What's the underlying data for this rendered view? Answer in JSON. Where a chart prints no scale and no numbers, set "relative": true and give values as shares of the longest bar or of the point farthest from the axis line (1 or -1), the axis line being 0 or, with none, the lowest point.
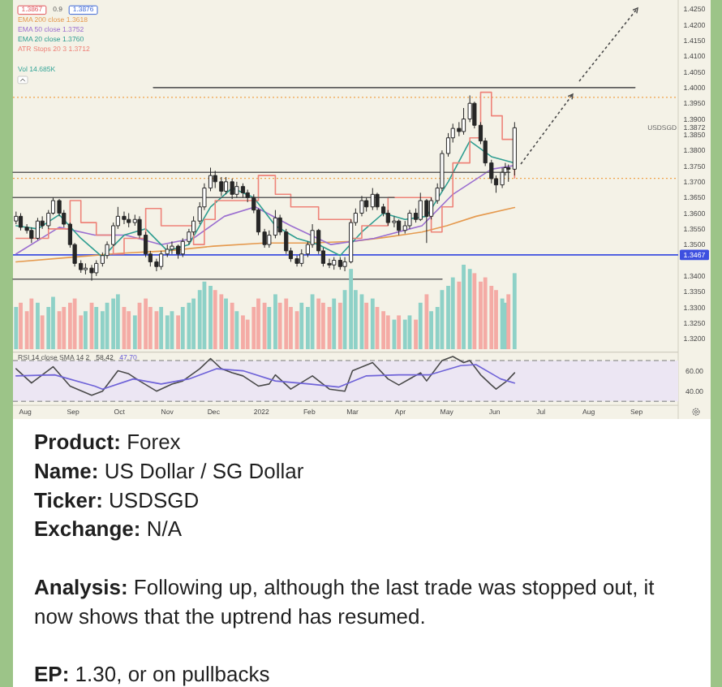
{
  "chart_data": [
    {
      "type": "candlestick",
      "color": "#262626",
      "xlim": [
        "2021-07-24",
        "2022-09-28"
      ],
      "ylim": [
        1.3159,
        1.4279
      ],
      "tick_labels": "y",
      "legend": "top left",
      "yticks": [
        {
          "value": 1.32,
          "label": "1.3200"
        },
        {
          "value": 1.325,
          "label": "1.3250"
        },
        {
          "value": 1.33,
          "label": "1.3300"
        },
        {
          "value": 1.335,
          "label": "1.3350"
        },
        {
          "value": 1.34,
          "label": "1.3400"
        },
        {
          "value": 1.35,
          "label": "1.3500"
        },
        {
          "value": 1.355,
          "label": "1.3550"
        },
        {
          "value": 1.36,
          "label": "1.3600"
        },
        {
          "value": 1.365,
          "label": "1.3650"
        },
        {
          "value": 1.37,
          "label": "1.3700"
        },
        {
          "value": 1.375,
          "label": "1.3750"
        },
        {
          "value": 1.38,
          "label": "1.3800"
        },
        {
          "value": 1.385,
          "label": "1.3850"
        },
        {
          "value": 1.3872,
          "label": "1.3872"
        },
        {
          "value": 1.39,
          "label": "1.3900"
        },
        {
          "value": 1.395,
          "label": "1.3950"
        },
        {
          "value": 1.4,
          "label": "1.4000"
        },
        {
          "value": 1.405,
          "label": "1.4050"
        },
        {
          "value": 1.41,
          "label": "1.4100"
        },
        {
          "value": 1.415,
          "label": "1.4150"
        },
        {
          "value": 1.42,
          "label": "1.4200"
        },
        {
          "value": 1.425,
          "label": "1.4250"
        }
      ],
      "annotations": [
        "1.3867",
        "0.9",
        "1.3876",
        "USDSGD"
      ],
      "ref_lines": [
        {
          "axis": "y",
          "value": 1.3467,
          "label": "1.3467",
          "color": "#3d4fe0"
        },
        {
          "axis": "y",
          "value": 1.3969,
          "color": "#f0a24a",
          "line_style": "dotted"
        },
        {
          "axis": "y",
          "value": 1.3711,
          "color": "#f0a24a",
          "line_style": "dotted"
        }
      ],
      "x": [
        "2021-07-26",
        "2021-07-29",
        "2021-08-02",
        "2021-08-05",
        "2021-08-09",
        "2021-08-12",
        "2021-08-16",
        "2021-08-19",
        "2021-08-23",
        "2021-08-26",
        "2021-08-30",
        "2021-09-02",
        "2021-09-06",
        "2021-09-09",
        "2021-09-13",
        "2021-09-16",
        "2021-09-20",
        "2021-09-23",
        "2021-09-27",
        "2021-09-30",
        "2021-10-04",
        "2021-10-07",
        "2021-10-11",
        "2021-10-14",
        "2021-10-18",
        "2021-10-21",
        "2021-10-25",
        "2021-10-28",
        "2021-11-01",
        "2021-11-04",
        "2021-11-08",
        "2021-11-11",
        "2021-11-15",
        "2021-11-18",
        "2021-11-22",
        "2021-11-25",
        "2021-11-29",
        "2021-12-02",
        "2021-12-06",
        "2021-12-09",
        "2021-12-13",
        "2021-12-16",
        "2021-12-20",
        "2021-12-23",
        "2021-12-27",
        "2021-12-30",
        "2022-01-03",
        "2022-01-06",
        "2022-01-10",
        "2022-01-13",
        "2022-01-17",
        "2022-01-20",
        "2022-01-24",
        "2022-01-27",
        "2022-01-31",
        "2022-02-03",
        "2022-02-07",
        "2022-02-10",
        "2022-02-14",
        "2022-02-17",
        "2022-02-21",
        "2022-02-24",
        "2022-02-28",
        "2022-03-03",
        "2022-03-07",
        "2022-03-10",
        "2022-03-14",
        "2022-03-17",
        "2022-03-21",
        "2022-03-24",
        "2022-03-28",
        "2022-03-31",
        "2022-04-04",
        "2022-04-07",
        "2022-04-11",
        "2022-04-14",
        "2022-04-18",
        "2022-04-21",
        "2022-04-25",
        "2022-04-28",
        "2022-05-02",
        "2022-05-05",
        "2022-05-09",
        "2022-05-12",
        "2022-05-16",
        "2022-05-19",
        "2022-05-23",
        "2022-05-26",
        "2022-05-30",
        "2022-06-02",
        "2022-06-06",
        "2022-06-08",
        "2022-06-10",
        "2022-06-14"
      ],
      "ohlc": [
        [
          1.3575,
          1.3605,
          1.3565,
          1.359
        ],
        [
          1.359,
          1.36,
          1.3545,
          1.3555
        ],
        [
          1.3555,
          1.3565,
          1.3535,
          1.3545
        ],
        [
          1.3545,
          1.3555,
          1.3505,
          1.352
        ],
        [
          1.352,
          1.3585,
          1.3515,
          1.3575
        ],
        [
          1.3575,
          1.359,
          1.355,
          1.356
        ],
        [
          1.356,
          1.361,
          1.355,
          1.36
        ],
        [
          1.36,
          1.365,
          1.3595,
          1.364
        ],
        [
          1.364,
          1.3645,
          1.359,
          1.36
        ],
        [
          1.36,
          1.361,
          1.3555,
          1.3565
        ],
        [
          1.3565,
          1.357,
          1.349,
          1.35
        ],
        [
          1.35,
          1.3505,
          1.343,
          1.344
        ],
        [
          1.344,
          1.345,
          1.341,
          1.342
        ],
        [
          1.342,
          1.344,
          1.3405,
          1.3425
        ],
        [
          1.3425,
          1.3435,
          1.3385,
          1.341
        ],
        [
          1.341,
          1.345,
          1.34,
          1.344
        ],
        [
          1.344,
          1.3475,
          1.343,
          1.3465
        ],
        [
          1.3465,
          1.351,
          1.3455,
          1.35
        ],
        [
          1.35,
          1.357,
          1.3495,
          1.356
        ],
        [
          1.356,
          1.362,
          1.355,
          1.359
        ],
        [
          1.359,
          1.3605,
          1.3565,
          1.358
        ],
        [
          1.358,
          1.36,
          1.3555,
          1.357
        ],
        [
          1.357,
          1.3595,
          1.356,
          1.358
        ],
        [
          1.358,
          1.359,
          1.352,
          1.353
        ],
        [
          1.353,
          1.354,
          1.346,
          1.347
        ],
        [
          1.347,
          1.348,
          1.343,
          1.3445
        ],
        [
          1.3445,
          1.3455,
          1.3415,
          1.343
        ],
        [
          1.343,
          1.348,
          1.342,
          1.347
        ],
        [
          1.347,
          1.35,
          1.346,
          1.3485
        ],
        [
          1.3485,
          1.351,
          1.347,
          1.3495
        ],
        [
          1.3495,
          1.35,
          1.3455,
          1.347
        ],
        [
          1.347,
          1.352,
          1.346,
          1.351
        ],
        [
          1.351,
          1.355,
          1.35,
          1.354
        ],
        [
          1.354,
          1.359,
          1.353,
          1.3575
        ],
        [
          1.3575,
          1.3635,
          1.3565,
          1.362
        ],
        [
          1.362,
          1.3695,
          1.361,
          1.368
        ],
        [
          1.368,
          1.3745,
          1.367,
          1.372
        ],
        [
          1.372,
          1.3735,
          1.368,
          1.37
        ],
        [
          1.37,
          1.3715,
          1.3655,
          1.367
        ],
        [
          1.367,
          1.3715,
          1.366,
          1.37
        ],
        [
          1.37,
          1.371,
          1.3645,
          1.366
        ],
        [
          1.366,
          1.37,
          1.365,
          1.3685
        ],
        [
          1.3685,
          1.3695,
          1.365,
          1.3665
        ],
        [
          1.3665,
          1.3675,
          1.3635,
          1.365
        ],
        [
          1.365,
          1.366,
          1.36,
          1.361
        ],
        [
          1.361,
          1.3615,
          1.353,
          1.354
        ],
        [
          1.354,
          1.355,
          1.349,
          1.35
        ],
        [
          1.35,
          1.3545,
          1.349,
          1.353
        ],
        [
          1.353,
          1.361,
          1.352,
          1.3585
        ],
        [
          1.3585,
          1.3595,
          1.353,
          1.354
        ],
        [
          1.354,
          1.355,
          1.347,
          1.348
        ],
        [
          1.348,
          1.349,
          1.3445,
          1.3455
        ],
        [
          1.3455,
          1.3465,
          1.343,
          1.344
        ],
        [
          1.344,
          1.3485,
          1.343,
          1.347
        ],
        [
          1.347,
          1.351,
          1.346,
          1.35
        ],
        [
          1.35,
          1.3565,
          1.349,
          1.3545
        ],
        [
          1.3545,
          1.355,
          1.347,
          1.348
        ],
        [
          1.348,
          1.349,
          1.343,
          1.344
        ],
        [
          1.344,
          1.3455,
          1.3425,
          1.3435
        ],
        [
          1.3435,
          1.346,
          1.342,
          1.345
        ],
        [
          1.345,
          1.346,
          1.342,
          1.343
        ],
        [
          1.343,
          1.346,
          1.3415,
          1.3445
        ],
        [
          1.3445,
          1.358,
          1.344,
          1.357
        ],
        [
          1.357,
          1.3615,
          1.356,
          1.36
        ],
        [
          1.36,
          1.3655,
          1.359,
          1.364
        ],
        [
          1.364,
          1.365,
          1.3605,
          1.362
        ],
        [
          1.362,
          1.368,
          1.361,
          1.366
        ],
        [
          1.366,
          1.3665,
          1.361,
          1.362
        ],
        [
          1.362,
          1.363,
          1.359,
          1.36
        ],
        [
          1.36,
          1.361,
          1.356,
          1.357
        ],
        [
          1.357,
          1.359,
          1.3555,
          1.3575
        ],
        [
          1.3575,
          1.358,
          1.353,
          1.3545
        ],
        [
          1.3545,
          1.3575,
          1.3535,
          1.356
        ],
        [
          1.356,
          1.361,
          1.355,
          1.36
        ],
        [
          1.36,
          1.3615,
          1.357,
          1.358
        ],
        [
          1.358,
          1.3665,
          1.3575,
          1.364
        ],
        [
          1.364,
          1.3645,
          1.3505,
          1.359
        ],
        [
          1.359,
          1.365,
          1.358,
          1.364
        ],
        [
          1.364,
          1.3695,
          1.363,
          1.368
        ],
        [
          1.368,
          1.38,
          1.367,
          1.379
        ],
        [
          1.379,
          1.3855,
          1.378,
          1.384
        ],
        [
          1.384,
          1.3885,
          1.3825,
          1.387
        ],
        [
          1.387,
          1.389,
          1.3845,
          1.386
        ],
        [
          1.386,
          1.3935,
          1.385,
          1.39
        ],
        [
          1.39,
          1.3975,
          1.389,
          1.395
        ],
        [
          1.395,
          1.3955,
          1.387,
          1.388
        ],
        [
          1.388,
          1.389,
          1.382,
          1.383
        ],
        [
          1.383,
          1.384,
          1.375,
          1.376
        ],
        [
          1.376,
          1.377,
          1.3695,
          1.371
        ],
        [
          1.371,
          1.372,
          1.3665,
          1.369
        ],
        [
          1.369,
          1.3745,
          1.368,
          1.373
        ],
        [
          1.373,
          1.376,
          1.372,
          1.3745
        ],
        [
          1.3745,
          1.3755,
          1.37,
          1.374
        ],
        [
          1.374,
          1.389,
          1.372,
          1.3872
        ]
      ],
      "series": [
        {
          "name": "EMA 200 close 1.3618",
          "type": "line",
          "color": "#e59a4f",
          "x": [
            "2021-07-26",
            "2021-09-01",
            "2021-10-01",
            "2021-11-01",
            "2021-12-01",
            "2022-01-03",
            "2022-02-01",
            "2022-03-01",
            "2022-03-21",
            "2022-04-15",
            "2022-05-01",
            "2022-05-20",
            "2022-06-14"
          ],
          "values": [
            1.3445,
            1.346,
            1.3472,
            1.348,
            1.3495,
            1.3505,
            1.3505,
            1.351,
            1.3522,
            1.354,
            1.356,
            1.359,
            1.3618
          ]
        },
        {
          "name": "EMA 50 close 1.3752",
          "type": "line",
          "color": "#9b6fd0",
          "x": [
            "2021-07-26",
            "2021-08-23",
            "2021-09-15",
            "2021-10-05",
            "2021-10-28",
            "2021-11-18",
            "2021-12-08",
            "2021-12-28",
            "2022-01-20",
            "2022-02-15",
            "2022-03-15",
            "2022-04-15",
            "2022-05-05",
            "2022-05-30",
            "2022-06-14"
          ],
          "values": [
            1.347,
            1.3555,
            1.353,
            1.353,
            1.35,
            1.352,
            1.359,
            1.362,
            1.356,
            1.35,
            1.352,
            1.356,
            1.366,
            1.374,
            1.3752
          ]
        },
        {
          "name": "EMA 20 close 1.3760",
          "type": "line",
          "color": "#2f9e91",
          "x": [
            "2021-07-26",
            "2021-08-09",
            "2021-08-23",
            "2021-09-06",
            "2021-09-20",
            "2021-10-04",
            "2021-10-18",
            "2021-11-01",
            "2021-11-15",
            "2021-11-29",
            "2021-12-13",
            "2021-12-27",
            "2022-01-10",
            "2022-01-24",
            "2022-02-07",
            "2022-02-21",
            "2022-03-07",
            "2022-03-21",
            "2022-04-04",
            "2022-04-18",
            "2022-05-02",
            "2022-05-16",
            "2022-05-30",
            "2022-06-14"
          ],
          "values": [
            1.356,
            1.355,
            1.3595,
            1.352,
            1.346,
            1.353,
            1.355,
            1.348,
            1.35,
            1.362,
            1.368,
            1.365,
            1.356,
            1.352,
            1.35,
            1.3465,
            1.354,
            1.36,
            1.358,
            1.359,
            1.37,
            1.383,
            1.378,
            1.376
          ]
        },
        {
          "name": "ATR Stops 20 3 1.3712",
          "type": "step",
          "color": "#ee8379",
          "x": [
            "2021-07-26",
            "2021-08-16",
            "2021-08-30",
            "2021-09-06",
            "2021-09-16",
            "2021-09-27",
            "2021-10-04",
            "2021-10-18",
            "2021-10-28",
            "2021-11-18",
            "2021-11-25",
            "2021-12-02",
            "2021-12-30",
            "2022-01-10",
            "2022-01-20",
            "2022-02-07",
            "2022-02-28",
            "2022-03-07",
            "2022-03-24",
            "2022-04-21",
            "2022-04-28",
            "2022-05-05",
            "2022-05-16",
            "2022-05-23",
            "2022-05-30",
            "2022-06-06",
            "2022-06-14"
          ],
          "values": [
            1.352,
            1.355,
            1.364,
            1.357,
            1.353,
            1.347,
            1.352,
            1.3615,
            1.356,
            1.35,
            1.358,
            1.364,
            1.372,
            1.366,
            1.362,
            1.358,
            1.352,
            1.356,
            1.365,
            1.354,
            1.362,
            1.376,
            1.384,
            1.3985,
            1.391,
            1.3835,
            1.3712
          ]
        },
        {
          "type": "line",
          "color": "#5e5e5e",
          "x": [
            "2021-10-23",
            "2022-08-31"
          ],
          "values": [
            1.4,
            1.4
          ]
        },
        {
          "type": "line",
          "color": "#5e5e5e",
          "x": [
            "2021-07-24",
            "2022-06-11"
          ],
          "values": [
            1.373,
            1.373
          ]
        },
        {
          "type": "line",
          "color": "#5e5e5e",
          "x": [
            "2021-07-24",
            "2022-03-28"
          ],
          "values": [
            1.365,
            1.365
          ]
        },
        {
          "type": "line",
          "color": "#5e5e5e",
          "x": [
            "2021-07-24",
            "2022-04-28"
          ],
          "values": [
            1.339,
            1.339
          ]
        }
      ]
    },
    {
      "type": "bar",
      "relative": true,
      "xlim": [
        "2021-07-24",
        "2022-09-28"
      ],
      "legend": "top left",
      "x": [
        "2021-07-26",
        "2021-07-29",
        "2021-08-02",
        "2021-08-05",
        "2021-08-09",
        "2021-08-12",
        "2021-08-16",
        "2021-08-19",
        "2021-08-23",
        "2021-08-26",
        "2021-08-30",
        "2021-09-02",
        "2021-09-06",
        "2021-09-09",
        "2021-09-13",
        "2021-09-16",
        "2021-09-20",
        "2021-09-23",
        "2021-09-27",
        "2021-09-30",
        "2021-10-04",
        "2021-10-07",
        "2021-10-11",
        "2021-10-14",
        "2021-10-18",
        "2021-10-21",
        "2021-10-25",
        "2021-10-28",
        "2021-11-01",
        "2021-11-04",
        "2021-11-08",
        "2021-11-11",
        "2021-11-15",
        "2021-11-18",
        "2021-11-22",
        "2021-11-25",
        "2021-11-29",
        "2021-12-02",
        "2021-12-06",
        "2021-12-09",
        "2021-12-13",
        "2021-12-16",
        "2021-12-20",
        "2021-12-23",
        "2021-12-27",
        "2021-12-30",
        "2022-01-03",
        "2022-01-06",
        "2022-01-10",
        "2022-01-13",
        "2022-01-17",
        "2022-01-20",
        "2022-01-24",
        "2022-01-27",
        "2022-01-31",
        "2022-02-03",
        "2022-02-07",
        "2022-02-10",
        "2022-02-14",
        "2022-02-17",
        "2022-02-21",
        "2022-02-24",
        "2022-02-28",
        "2022-03-03",
        "2022-03-07",
        "2022-03-10",
        "2022-03-14",
        "2022-03-17",
        "2022-03-21",
        "2022-03-24",
        "2022-03-28",
        "2022-03-31",
        "2022-04-04",
        "2022-04-07",
        "2022-04-11",
        "2022-04-14",
        "2022-04-18",
        "2022-04-21",
        "2022-04-25",
        "2022-04-28",
        "2022-05-02",
        "2022-05-05",
        "2022-05-09",
        "2022-05-12",
        "2022-05-16",
        "2022-05-19",
        "2022-05-23",
        "2022-05-26",
        "2022-05-30",
        "2022-06-02",
        "2022-06-06",
        "2022-06-08",
        "2022-06-10",
        "2022-06-14"
      ],
      "series": [
        {
          "name": "Vol 14.685K",
          "color": "#3aa79a",
          "values": [
            0.5,
            0.55,
            0.45,
            0.6,
            0.55,
            0.4,
            0.5,
            0.62,
            0.45,
            0.5,
            0.55,
            0.6,
            0.4,
            0.45,
            0.55,
            0.5,
            0.45,
            0.55,
            0.6,
            0.65,
            0.5,
            0.45,
            0.4,
            0.55,
            0.6,
            0.5,
            0.45,
            0.5,
            0.4,
            0.45,
            0.4,
            0.5,
            0.55,
            0.6,
            0.7,
            0.8,
            0.75,
            0.7,
            0.65,
            0.6,
            0.55,
            0.45,
            0.4,
            0.35,
            0.5,
            0.6,
            0.55,
            0.5,
            0.65,
            0.55,
            0.6,
            0.5,
            0.45,
            0.55,
            0.5,
            0.65,
            0.6,
            0.55,
            0.5,
            0.6,
            0.55,
            0.7,
            0.95,
            0.7,
            0.65,
            0.55,
            0.6,
            0.5,
            0.45,
            0.4,
            0.35,
            0.4,
            0.35,
            0.4,
            0.35,
            0.55,
            0.65,
            0.45,
            0.5,
            0.7,
            0.75,
            0.85,
            0.8,
            1.0,
            0.95,
            0.9,
            0.8,
            0.85,
            0.75,
            0.7,
            0.6,
            0.55,
            0.65,
            0.9
          ],
          "colors": [
            "#8ed1c7",
            "#f4aba5",
            "#f4aba5",
            "#f4aba5",
            "#8ed1c7",
            "#f4aba5",
            "#8ed1c7",
            "#8ed1c7",
            "#f4aba5",
            "#f4aba5",
            "#f4aba5",
            "#f4aba5",
            "#f4aba5",
            "#8ed1c7",
            "#f4aba5",
            "#8ed1c7",
            "#8ed1c7",
            "#8ed1c7",
            "#8ed1c7",
            "#8ed1c7",
            "#f4aba5",
            "#f4aba5",
            "#8ed1c7",
            "#f4aba5",
            "#f4aba5",
            "#f4aba5",
            "#f4aba5",
            "#8ed1c7",
            "#8ed1c7",
            "#8ed1c7",
            "#f4aba5",
            "#8ed1c7",
            "#8ed1c7",
            "#8ed1c7",
            "#8ed1c7",
            "#8ed1c7",
            "#8ed1c7",
            "#f4aba5",
            "#f4aba5",
            "#8ed1c7",
            "#f4aba5",
            "#8ed1c7",
            "#f4aba5",
            "#f4aba5",
            "#f4aba5",
            "#f4aba5",
            "#f4aba5",
            "#8ed1c7",
            "#8ed1c7",
            "#f4aba5",
            "#f4aba5",
            "#f4aba5",
            "#f4aba5",
            "#8ed1c7",
            "#8ed1c7",
            "#8ed1c7",
            "#f4aba5",
            "#f4aba5",
            "#f4aba5",
            "#8ed1c7",
            "#f4aba5",
            "#8ed1c7",
            "#8ed1c7",
            "#8ed1c7",
            "#8ed1c7",
            "#f4aba5",
            "#8ed1c7",
            "#f4aba5",
            "#f4aba5",
            "#f4aba5",
            "#8ed1c7",
            "#f4aba5",
            "#8ed1c7",
            "#8ed1c7",
            "#f4aba5",
            "#8ed1c7",
            "#f4aba5",
            "#8ed1c7",
            "#8ed1c7",
            "#8ed1c7",
            "#8ed1c7",
            "#8ed1c7",
            "#f4aba5",
            "#8ed1c7",
            "#8ed1c7",
            "#f4aba5",
            "#f4aba5",
            "#f4aba5",
            "#f4aba5",
            "#f4aba5",
            "#8ed1c7",
            "#8ed1c7",
            "#f4aba5",
            "#8ed1c7"
          ]
        }
      ]
    },
    {
      "type": "line",
      "title": "RSI 14 close SMA 14 2",
      "legend": "top left",
      "xlim": [
        "2021-07-24",
        "2022-09-28"
      ],
      "ylim": [
        27,
        78
      ],
      "yticks": [
        {
          "value": 60,
          "label": "60.00"
        },
        {
          "value": 40,
          "label": "40.00"
        }
      ],
      "xticks": [
        {
          "value": "2021-08-01",
          "label": "Aug"
        },
        {
          "value": "2021-09-01",
          "label": "Sep"
        },
        {
          "value": "2021-10-01",
          "label": "Oct"
        },
        {
          "value": "2021-11-01",
          "label": "Nov"
        },
        {
          "value": "2021-12-01",
          "label": "Dec"
        },
        {
          "value": "2022-01-01",
          "label": "2022"
        },
        {
          "value": "2022-02-01",
          "label": "Feb"
        },
        {
          "value": "2022-03-01",
          "label": "Mar"
        },
        {
          "value": "2022-04-01",
          "label": "Apr"
        },
        {
          "value": "2022-05-01",
          "label": "May"
        },
        {
          "value": "2022-06-01",
          "label": "Jun"
        },
        {
          "value": "2022-07-01",
          "label": "Jul"
        },
        {
          "value": "2022-08-01",
          "label": "Aug"
        },
        {
          "value": "2022-09-01",
          "label": "Sep"
        }
      ],
      "bands": [
        {
          "axis": "y",
          "from": 30,
          "to": 70,
          "color": "#ece6f3"
        }
      ],
      "ref_lines": [
        {
          "axis": "y",
          "value": 70,
          "color": "#a0a0a0",
          "line_style": "dashed"
        },
        {
          "axis": "y",
          "value": 30,
          "color": "#a0a0a0",
          "line_style": "dashed"
        }
      ],
      "series": [
        {
          "name": "58.42",
          "color": "#4a4a4a",
          "x": [
            "2021-07-26",
            "2021-08-05",
            "2021-08-19",
            "2021-08-30",
            "2021-09-13",
            "2021-09-20",
            "2021-09-30",
            "2021-10-07",
            "2021-10-14",
            "2021-10-25",
            "2021-11-04",
            "2021-11-11",
            "2021-11-22",
            "2021-11-29",
            "2021-12-06",
            "2021-12-13",
            "2021-12-20",
            "2021-12-30",
            "2022-01-06",
            "2022-01-10",
            "2022-01-20",
            "2022-02-03",
            "2022-02-14",
            "2022-02-24",
            "2022-03-01",
            "2022-03-14",
            "2022-03-24",
            "2022-03-31",
            "2022-04-14",
            "2022-04-18",
            "2022-04-28",
            "2022-05-05",
            "2022-05-12",
            "2022-05-16",
            "2022-05-23",
            "2022-05-30",
            "2022-06-02",
            "2022-06-09",
            "2022-06-14"
          ],
          "values": [
            62,
            48,
            64,
            45,
            36,
            40,
            60,
            57,
            50,
            40,
            47,
            50,
            62,
            72,
            62,
            58,
            55,
            45,
            47,
            56,
            42,
            55,
            42,
            40,
            60,
            68,
            52,
            46,
            58,
            50,
            70,
            74,
            68,
            70,
            56,
            46,
            42,
            50,
            58
          ]
        },
        {
          "name": "47.70",
          "color": "#6f63d8",
          "x": [
            "2021-07-26",
            "2021-08-20",
            "2021-09-15",
            "2021-09-20",
            "2021-10-10",
            "2021-10-28",
            "2021-11-15",
            "2021-12-03",
            "2021-12-20",
            "2022-01-10",
            "2022-02-01",
            "2022-02-20",
            "2022-03-10",
            "2022-03-31",
            "2022-04-20",
            "2022-05-10",
            "2022-05-20",
            "2022-06-05",
            "2022-06-14"
          ],
          "values": [
            55,
            56,
            45,
            42,
            52,
            47,
            52,
            62,
            60,
            50,
            47,
            44,
            55,
            56,
            56,
            65,
            66,
            52,
            48
          ]
        }
      ]
    },
    {
      "type": "other",
      "annotations": [
        "Product: Forex",
        "Name: US Dollar / SG Dollar",
        "Ticker: USDSGD",
        "Exchange: N/A",
        "Analysis: Following up, although the last trade was stopped out, it now shows that the uptrend has resumed.",
        "EP: 1.30, or on pullbacks"
      ]
    }
  ]
}
